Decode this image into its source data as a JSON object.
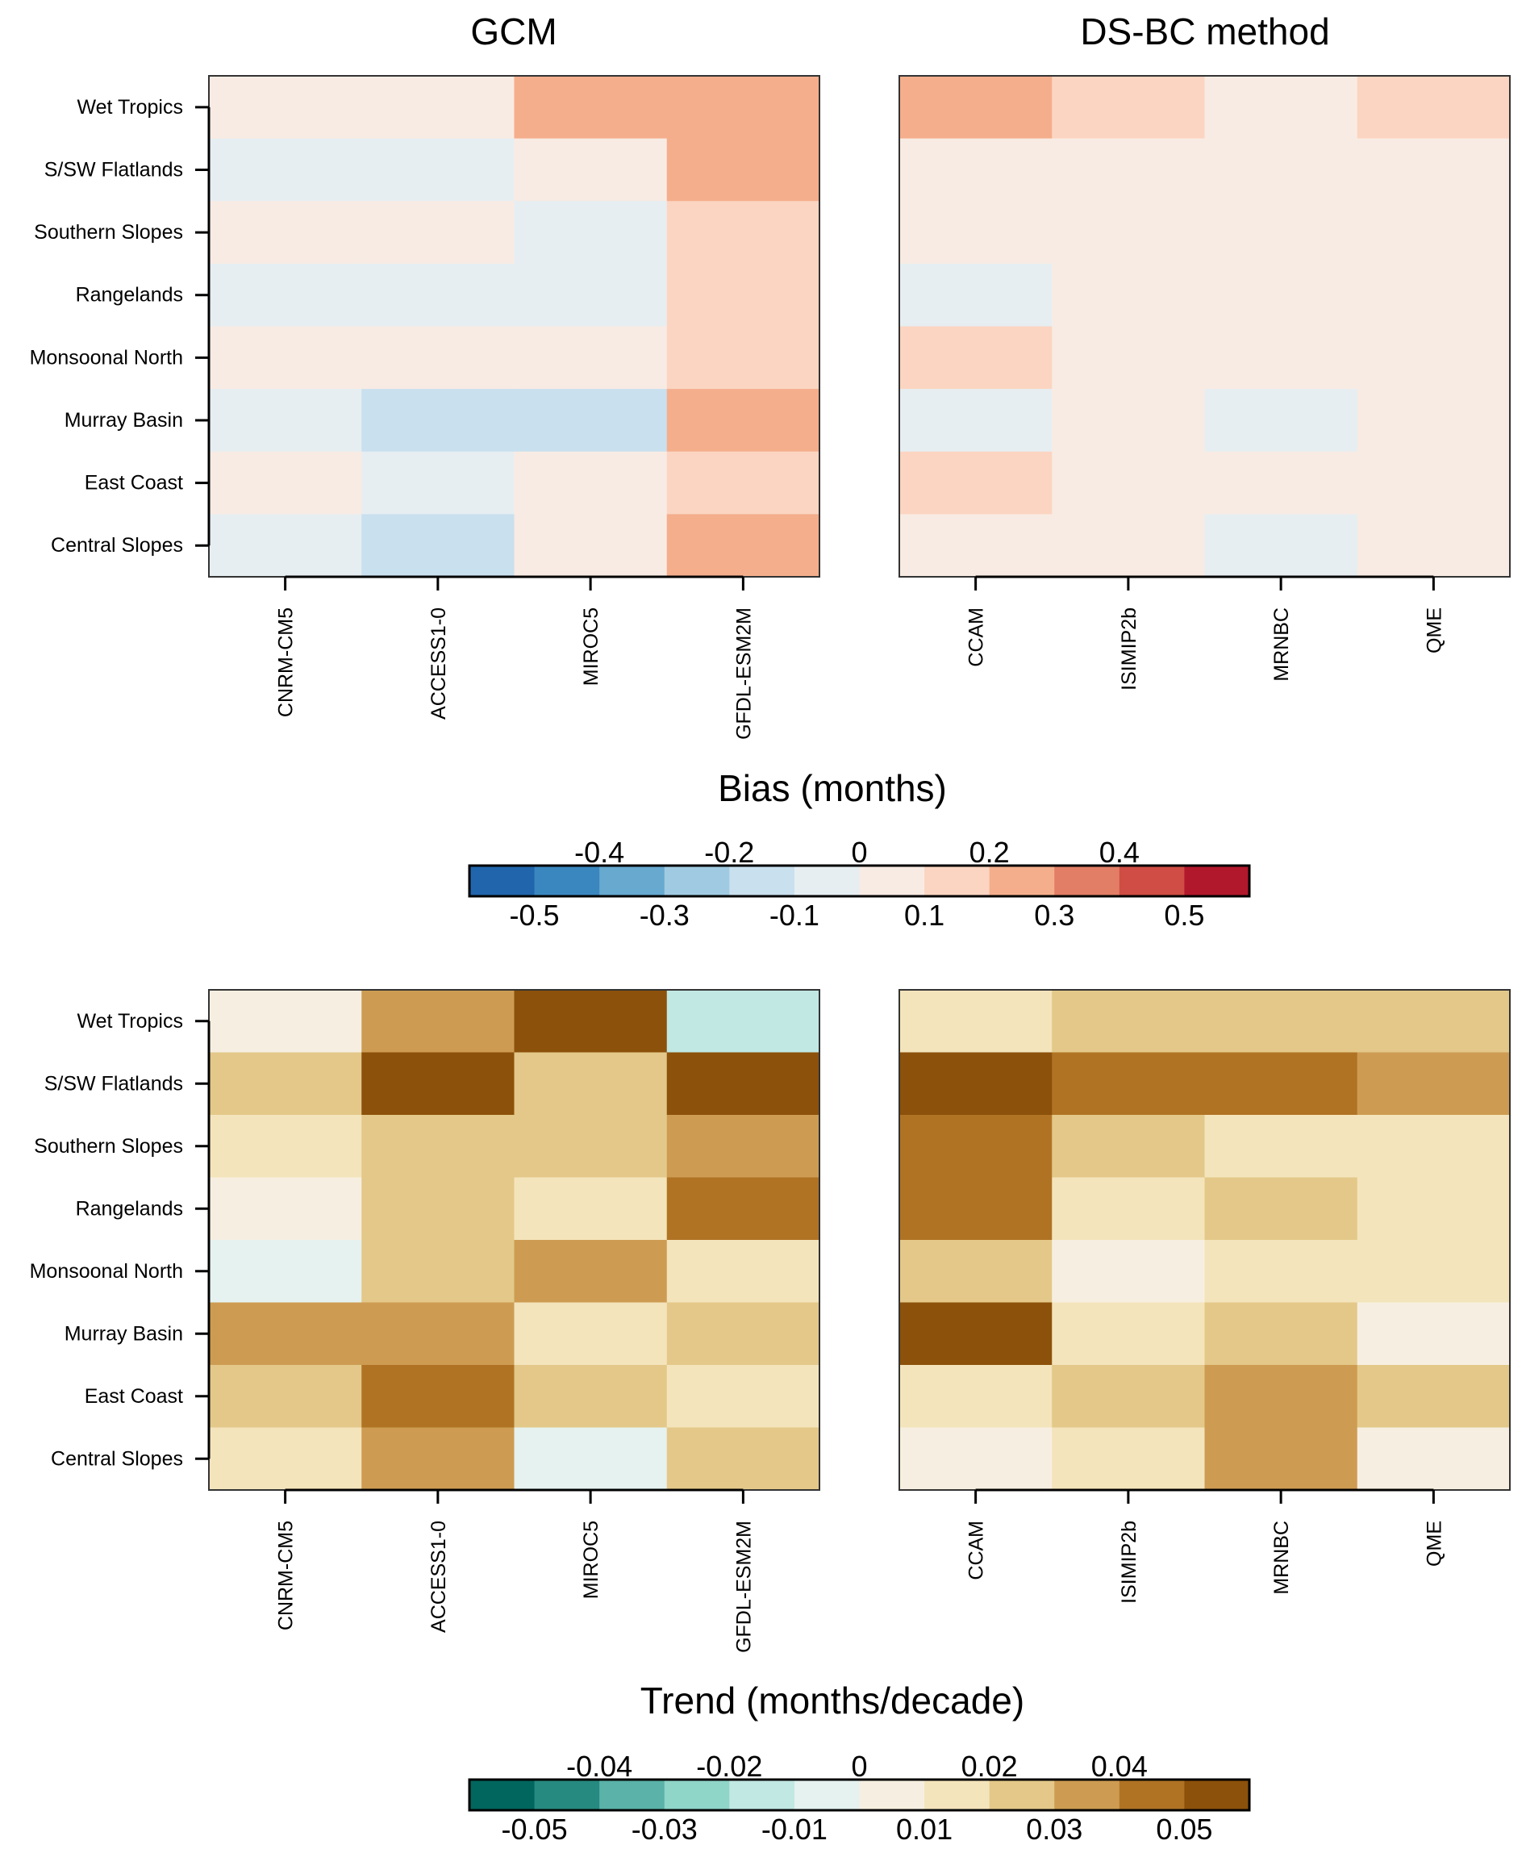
{
  "chart_data": [
    {
      "type": "heatmap",
      "panel": "bias-gcm",
      "title": "GCM",
      "rows": [
        "Wet Tropics",
        "S/SW Flatlands",
        "Southern Slopes",
        "Rangelands",
        "Monsoonal North",
        "Murray Basin",
        "East Coast",
        "Central Slopes"
      ],
      "columns": [
        "CNRM-CM5",
        "ACCESS1-0",
        "MIROC5",
        "GFDL-ESM2M"
      ],
      "values": [
        [
          0.05,
          0.05,
          0.25,
          0.25
        ],
        [
          -0.05,
          -0.05,
          0.05,
          0.25
        ],
        [
          0.05,
          0.05,
          -0.05,
          0.15
        ],
        [
          -0.05,
          -0.05,
          -0.05,
          0.15
        ],
        [
          0.05,
          0.05,
          0.05,
          0.15
        ],
        [
          -0.05,
          -0.15,
          -0.15,
          0.25
        ],
        [
          0.05,
          -0.05,
          0.05,
          0.15
        ],
        [
          -0.05,
          -0.15,
          0.05,
          0.25
        ]
      ],
      "scale": "bias"
    },
    {
      "type": "heatmap",
      "panel": "bias-dsbc",
      "title": "DS-BC method",
      "rows": [
        "Wet Tropics",
        "S/SW Flatlands",
        "Southern Slopes",
        "Rangelands",
        "Monsoonal North",
        "Murray Basin",
        "East Coast",
        "Central Slopes"
      ],
      "columns": [
        "CCAM",
        "ISIMIP2b",
        "MRNBC",
        "QME"
      ],
      "values": [
        [
          0.25,
          0.15,
          0.05,
          0.15
        ],
        [
          0.05,
          0.05,
          0.05,
          0.05
        ],
        [
          0.05,
          0.05,
          0.05,
          0.05
        ],
        [
          -0.05,
          0.05,
          0.05,
          0.05
        ],
        [
          0.15,
          0.05,
          0.05,
          0.05
        ],
        [
          -0.05,
          0.05,
          -0.05,
          0.05
        ],
        [
          0.15,
          0.05,
          0.05,
          0.05
        ],
        [
          0.05,
          0.05,
          -0.05,
          0.05
        ]
      ],
      "scale": "bias"
    },
    {
      "type": "heatmap",
      "panel": "trend-gcm",
      "title": "",
      "rows": [
        "Wet Tropics",
        "S/SW Flatlands",
        "Southern Slopes",
        "Rangelands",
        "Monsoonal North",
        "Murray Basin",
        "East Coast",
        "Central Slopes"
      ],
      "columns": [
        "CNRM-CM5",
        "ACCESS1-0",
        "MIROC5",
        "GFDL-ESM2M"
      ],
      "values": [
        [
          0.005,
          0.035,
          0.055,
          -0.015
        ],
        [
          0.025,
          0.055,
          0.025,
          0.055
        ],
        [
          0.015,
          0.025,
          0.025,
          0.035
        ],
        [
          0.005,
          0.025,
          0.015,
          0.045
        ],
        [
          -0.005,
          0.025,
          0.035,
          0.015
        ],
        [
          0.035,
          0.035,
          0.015,
          0.025
        ],
        [
          0.025,
          0.045,
          0.025,
          0.015
        ],
        [
          0.015,
          0.035,
          -0.005,
          0.025
        ]
      ],
      "scale": "trend"
    },
    {
      "type": "heatmap",
      "panel": "trend-dsbc",
      "title": "",
      "rows": [
        "Wet Tropics",
        "S/SW Flatlands",
        "Southern Slopes",
        "Rangelands",
        "Monsoonal North",
        "Murray Basin",
        "East Coast",
        "Central Slopes"
      ],
      "columns": [
        "CCAM",
        "ISIMIP2b",
        "MRNBC",
        "QME"
      ],
      "values": [
        [
          0.015,
          0.025,
          0.025,
          0.025
        ],
        [
          0.055,
          0.045,
          0.045,
          0.035
        ],
        [
          0.045,
          0.025,
          0.015,
          0.015
        ],
        [
          0.045,
          0.015,
          0.025,
          0.015
        ],
        [
          0.025,
          0.005,
          0.015,
          0.015
        ],
        [
          0.055,
          0.015,
          0.025,
          0.005
        ],
        [
          0.015,
          0.025,
          0.035,
          0.025
        ],
        [
          0.005,
          0.015,
          0.035,
          0.005
        ]
      ],
      "scale": "trend"
    }
  ],
  "scales": {
    "bias": {
      "title": "Bias (months)",
      "range": [
        -0.6,
        0.6
      ],
      "colors": [
        "#2166ac",
        "#3a87bf",
        "#67a9cf",
        "#a0cae1",
        "#c9e0ee",
        "#e6eef2",
        "#f8ebe3",
        "#fbd5c1",
        "#f4ae8c",
        "#e17e65",
        "#cf4d44",
        "#b2182b"
      ],
      "top_labels": [
        "-0.4",
        "-0.2",
        "0",
        "0.2",
        "0.4"
      ],
      "bottom_labels": [
        "-0.5",
        "-0.3",
        "-0.1",
        "0.1",
        "0.3",
        "0.5"
      ]
    },
    "trend": {
      "title": "Trend (months/decade)",
      "range": [
        -0.06,
        0.06
      ],
      "colors": [
        "#01665e",
        "#268a80",
        "#5ab2a8",
        "#8fd5c8",
        "#c1e8e3",
        "#e5f2ef",
        "#f6efe1",
        "#f4e4bc",
        "#e3c889",
        "#cd9c52",
        "#b07324",
        "#8c510a"
      ],
      "top_labels": [
        "-0.04",
        "-0.02",
        "0",
        "0.02",
        "0.04"
      ],
      "bottom_labels": [
        "-0.05",
        "-0.03",
        "-0.01",
        "0.01",
        "0.03",
        "0.05"
      ]
    }
  }
}
